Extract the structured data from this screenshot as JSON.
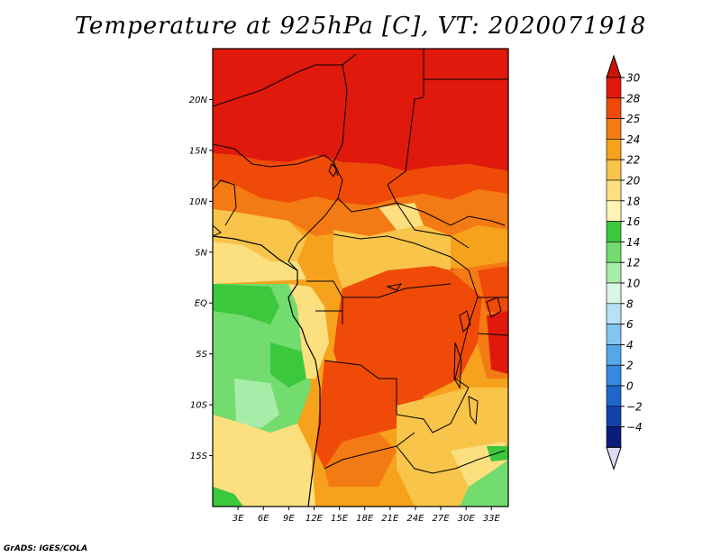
{
  "title": "Temperature at 925hPa [C], VT: 2020071918",
  "credit": "GrADS: IGES/COLA",
  "map": {
    "lat_range": [
      -20,
      25
    ],
    "lon_range": [
      0,
      35
    ],
    "lat_ticks": [
      {
        "value": 20,
        "label": "20N"
      },
      {
        "value": 15,
        "label": "15N"
      },
      {
        "value": 10,
        "label": "10N"
      },
      {
        "value": 5,
        "label": "5N"
      },
      {
        "value": 0,
        "label": "EQ"
      },
      {
        "value": -5,
        "label": "5S"
      },
      {
        "value": -10,
        "label": "10S"
      },
      {
        "value": -15,
        "label": "15S"
      }
    ],
    "lon_ticks": [
      {
        "value": 3,
        "label": "3E"
      },
      {
        "value": 6,
        "label": "6E"
      },
      {
        "value": 9,
        "label": "9E"
      },
      {
        "value": 12,
        "label": "12E"
      },
      {
        "value": 15,
        "label": "15E"
      },
      {
        "value": 18,
        "label": "18E"
      },
      {
        "value": 21,
        "label": "21E"
      },
      {
        "value": 24,
        "label": "24E"
      },
      {
        "value": 27,
        "label": "27E"
      },
      {
        "value": 30,
        "label": "30E"
      },
      {
        "value": 33,
        "label": "33E"
      }
    ]
  },
  "colorbar": {
    "levels": [
      "30",
      "28",
      "25",
      "24",
      "22",
      "20",
      "18",
      "16",
      "14",
      "12",
      "10",
      "8",
      "6",
      "4",
      "2",
      "0",
      "−2",
      "−4"
    ],
    "colors": [
      "#e0190c",
      "#f04a09",
      "#f47a14",
      "#f6a21c",
      "#f8c44a",
      "#fce07f",
      "#fdf5b4",
      "#3cc83c",
      "#72dc6e",
      "#a8ecaa",
      "#d8f6e4",
      "#b6e0f6",
      "#82c6f0",
      "#54a8ea",
      "#3688e0",
      "#1e66cc",
      "#1044ac",
      "#0a1c7c"
    ],
    "top_color": "#cc1208",
    "bottom_color": "#dcdcf4"
  }
}
